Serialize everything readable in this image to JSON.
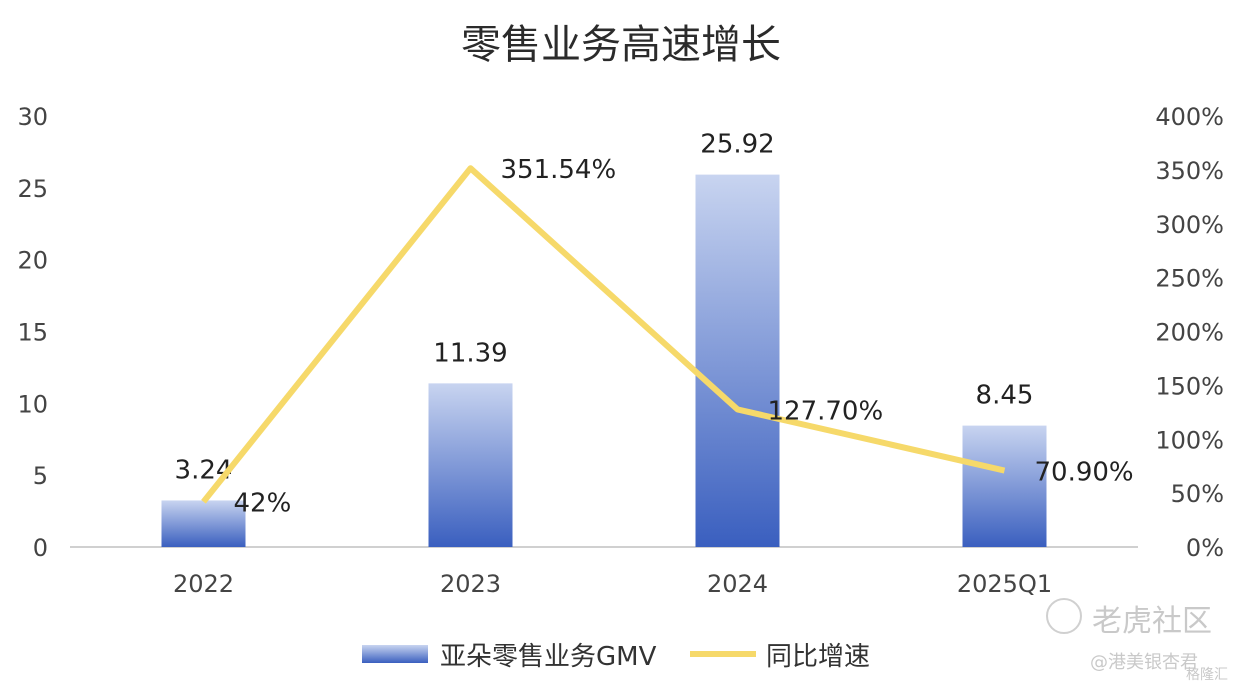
{
  "chart_data": {
    "type": "bar",
    "title": "零售业务高速增长",
    "categories": [
      "2022",
      "2023",
      "2024",
      "2025Q1"
    ],
    "series": [
      {
        "name": "亚朵零售业务GMV",
        "type": "bar",
        "axis": "left",
        "values": [
          3.24,
          11.39,
          25.92,
          8.45
        ],
        "labels": [
          "3.24",
          "11.39",
          "25.92",
          "8.45"
        ]
      },
      {
        "name": "同比增速",
        "type": "line",
        "axis": "right",
        "values": [
          42,
          351.54,
          127.7,
          70.9
        ],
        "labels": [
          "42%",
          "351.54%",
          "127.70%",
          "70.90%"
        ]
      }
    ],
    "y_left": {
      "ylim": [
        0,
        30
      ],
      "ticks": [
        "0",
        "5",
        "10",
        "15",
        "20",
        "25",
        "30"
      ]
    },
    "y_right": {
      "ylim": [
        0,
        400
      ],
      "ticks": [
        "0%",
        "50%",
        "100%",
        "150%",
        "200%",
        "250%",
        "300%",
        "350%",
        "400%"
      ]
    },
    "grid": false,
    "legend": "bottom",
    "colors": {
      "bar_top": "#c8d4f0",
      "bar_bottom": "#3a5fbf",
      "line": "#f6d96a",
      "axis": "#d0d0d0"
    }
  },
  "watermark": {
    "brand": "老虎社区",
    "handle": "@港美银杏君",
    "source": "格隆汇"
  }
}
